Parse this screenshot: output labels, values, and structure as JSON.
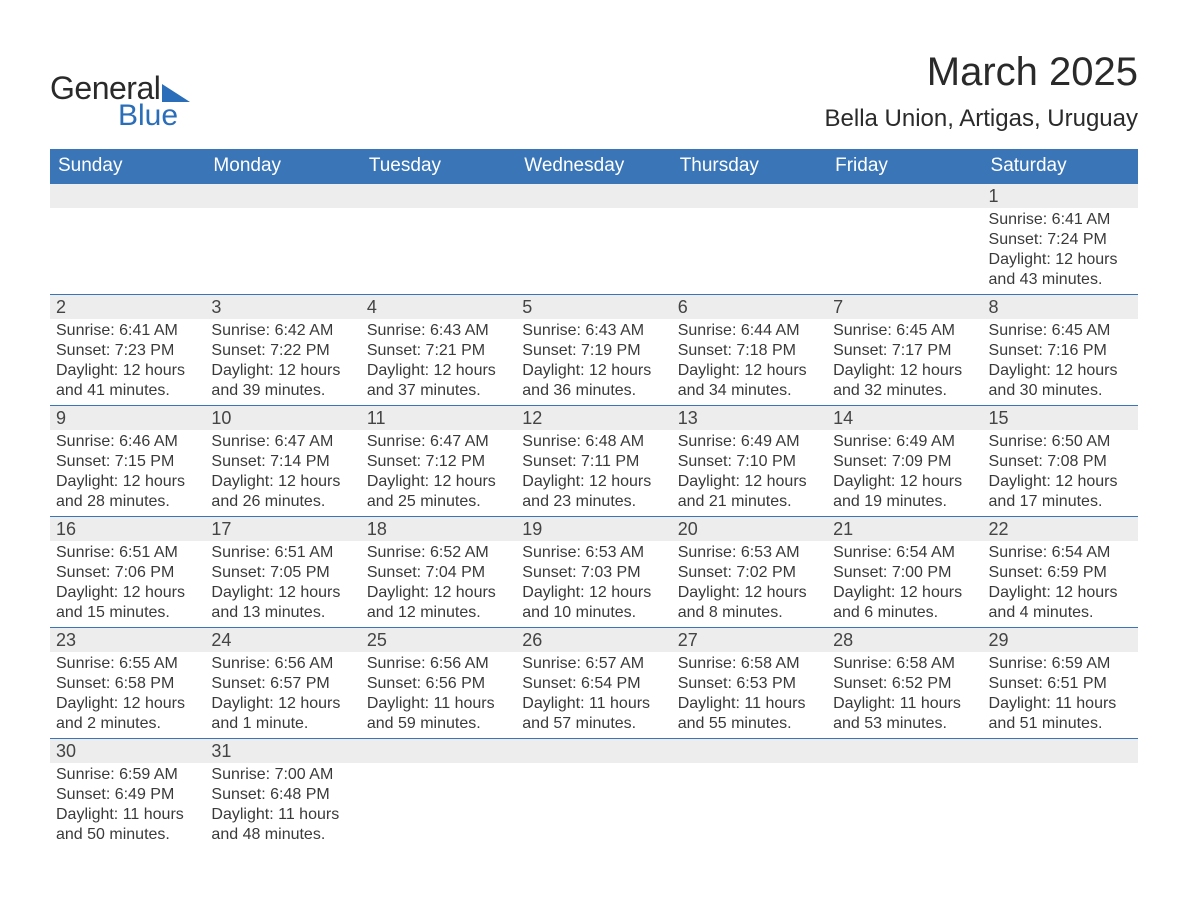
{
  "logo": {
    "text1": "General",
    "text2": "Blue"
  },
  "title": "March 2025",
  "location": "Bella Union, Artigas, Uruguay",
  "colors": {
    "header_bg": "#3a75b7",
    "header_text": "#ffffff",
    "daynum_bg": "#ededed",
    "text": "#3a3a3a",
    "border": "#3a75b7",
    "logo_accent": "#2a6db8"
  },
  "typography": {
    "title_fontsize": 40,
    "location_fontsize": 24,
    "dayheader_fontsize": 19,
    "daynum_fontsize": 18,
    "body_fontsize": 16
  },
  "day_headers": [
    "Sunday",
    "Monday",
    "Tuesday",
    "Wednesday",
    "Thursday",
    "Friday",
    "Saturday"
  ],
  "weeks": [
    [
      {
        "num": "",
        "sunrise": "",
        "sunset": "",
        "daylight": ""
      },
      {
        "num": "",
        "sunrise": "",
        "sunset": "",
        "daylight": ""
      },
      {
        "num": "",
        "sunrise": "",
        "sunset": "",
        "daylight": ""
      },
      {
        "num": "",
        "sunrise": "",
        "sunset": "",
        "daylight": ""
      },
      {
        "num": "",
        "sunrise": "",
        "sunset": "",
        "daylight": ""
      },
      {
        "num": "",
        "sunrise": "",
        "sunset": "",
        "daylight": ""
      },
      {
        "num": "1",
        "sunrise": "Sunrise: 6:41 AM",
        "sunset": "Sunset: 7:24 PM",
        "daylight": "Daylight: 12 hours and 43 minutes."
      }
    ],
    [
      {
        "num": "2",
        "sunrise": "Sunrise: 6:41 AM",
        "sunset": "Sunset: 7:23 PM",
        "daylight": "Daylight: 12 hours and 41 minutes."
      },
      {
        "num": "3",
        "sunrise": "Sunrise: 6:42 AM",
        "sunset": "Sunset: 7:22 PM",
        "daylight": "Daylight: 12 hours and 39 minutes."
      },
      {
        "num": "4",
        "sunrise": "Sunrise: 6:43 AM",
        "sunset": "Sunset: 7:21 PM",
        "daylight": "Daylight: 12 hours and 37 minutes."
      },
      {
        "num": "5",
        "sunrise": "Sunrise: 6:43 AM",
        "sunset": "Sunset: 7:19 PM",
        "daylight": "Daylight: 12 hours and 36 minutes."
      },
      {
        "num": "6",
        "sunrise": "Sunrise: 6:44 AM",
        "sunset": "Sunset: 7:18 PM",
        "daylight": "Daylight: 12 hours and 34 minutes."
      },
      {
        "num": "7",
        "sunrise": "Sunrise: 6:45 AM",
        "sunset": "Sunset: 7:17 PM",
        "daylight": "Daylight: 12 hours and 32 minutes."
      },
      {
        "num": "8",
        "sunrise": "Sunrise: 6:45 AM",
        "sunset": "Sunset: 7:16 PM",
        "daylight": "Daylight: 12 hours and 30 minutes."
      }
    ],
    [
      {
        "num": "9",
        "sunrise": "Sunrise: 6:46 AM",
        "sunset": "Sunset: 7:15 PM",
        "daylight": "Daylight: 12 hours and 28 minutes."
      },
      {
        "num": "10",
        "sunrise": "Sunrise: 6:47 AM",
        "sunset": "Sunset: 7:14 PM",
        "daylight": "Daylight: 12 hours and 26 minutes."
      },
      {
        "num": "11",
        "sunrise": "Sunrise: 6:47 AM",
        "sunset": "Sunset: 7:12 PM",
        "daylight": "Daylight: 12 hours and 25 minutes."
      },
      {
        "num": "12",
        "sunrise": "Sunrise: 6:48 AM",
        "sunset": "Sunset: 7:11 PM",
        "daylight": "Daylight: 12 hours and 23 minutes."
      },
      {
        "num": "13",
        "sunrise": "Sunrise: 6:49 AM",
        "sunset": "Sunset: 7:10 PM",
        "daylight": "Daylight: 12 hours and 21 minutes."
      },
      {
        "num": "14",
        "sunrise": "Sunrise: 6:49 AM",
        "sunset": "Sunset: 7:09 PM",
        "daylight": "Daylight: 12 hours and 19 minutes."
      },
      {
        "num": "15",
        "sunrise": "Sunrise: 6:50 AM",
        "sunset": "Sunset: 7:08 PM",
        "daylight": "Daylight: 12 hours and 17 minutes."
      }
    ],
    [
      {
        "num": "16",
        "sunrise": "Sunrise: 6:51 AM",
        "sunset": "Sunset: 7:06 PM",
        "daylight": "Daylight: 12 hours and 15 minutes."
      },
      {
        "num": "17",
        "sunrise": "Sunrise: 6:51 AM",
        "sunset": "Sunset: 7:05 PM",
        "daylight": "Daylight: 12 hours and 13 minutes."
      },
      {
        "num": "18",
        "sunrise": "Sunrise: 6:52 AM",
        "sunset": "Sunset: 7:04 PM",
        "daylight": "Daylight: 12 hours and 12 minutes."
      },
      {
        "num": "19",
        "sunrise": "Sunrise: 6:53 AM",
        "sunset": "Sunset: 7:03 PM",
        "daylight": "Daylight: 12 hours and 10 minutes."
      },
      {
        "num": "20",
        "sunrise": "Sunrise: 6:53 AM",
        "sunset": "Sunset: 7:02 PM",
        "daylight": "Daylight: 12 hours and 8 minutes."
      },
      {
        "num": "21",
        "sunrise": "Sunrise: 6:54 AM",
        "sunset": "Sunset: 7:00 PM",
        "daylight": "Daylight: 12 hours and 6 minutes."
      },
      {
        "num": "22",
        "sunrise": "Sunrise: 6:54 AM",
        "sunset": "Sunset: 6:59 PM",
        "daylight": "Daylight: 12 hours and 4 minutes."
      }
    ],
    [
      {
        "num": "23",
        "sunrise": "Sunrise: 6:55 AM",
        "sunset": "Sunset: 6:58 PM",
        "daylight": "Daylight: 12 hours and 2 minutes."
      },
      {
        "num": "24",
        "sunrise": "Sunrise: 6:56 AM",
        "sunset": "Sunset: 6:57 PM",
        "daylight": "Daylight: 12 hours and 1 minute."
      },
      {
        "num": "25",
        "sunrise": "Sunrise: 6:56 AM",
        "sunset": "Sunset: 6:56 PM",
        "daylight": "Daylight: 11 hours and 59 minutes."
      },
      {
        "num": "26",
        "sunrise": "Sunrise: 6:57 AM",
        "sunset": "Sunset: 6:54 PM",
        "daylight": "Daylight: 11 hours and 57 minutes."
      },
      {
        "num": "27",
        "sunrise": "Sunrise: 6:58 AM",
        "sunset": "Sunset: 6:53 PM",
        "daylight": "Daylight: 11 hours and 55 minutes."
      },
      {
        "num": "28",
        "sunrise": "Sunrise: 6:58 AM",
        "sunset": "Sunset: 6:52 PM",
        "daylight": "Daylight: 11 hours and 53 minutes."
      },
      {
        "num": "29",
        "sunrise": "Sunrise: 6:59 AM",
        "sunset": "Sunset: 6:51 PM",
        "daylight": "Daylight: 11 hours and 51 minutes."
      }
    ],
    [
      {
        "num": "30",
        "sunrise": "Sunrise: 6:59 AM",
        "sunset": "Sunset: 6:49 PM",
        "daylight": "Daylight: 11 hours and 50 minutes."
      },
      {
        "num": "31",
        "sunrise": "Sunrise: 7:00 AM",
        "sunset": "Sunset: 6:48 PM",
        "daylight": "Daylight: 11 hours and 48 minutes."
      },
      {
        "num": "",
        "sunrise": "",
        "sunset": "",
        "daylight": ""
      },
      {
        "num": "",
        "sunrise": "",
        "sunset": "",
        "daylight": ""
      },
      {
        "num": "",
        "sunrise": "",
        "sunset": "",
        "daylight": ""
      },
      {
        "num": "",
        "sunrise": "",
        "sunset": "",
        "daylight": ""
      },
      {
        "num": "",
        "sunrise": "",
        "sunset": "",
        "daylight": ""
      }
    ]
  ]
}
